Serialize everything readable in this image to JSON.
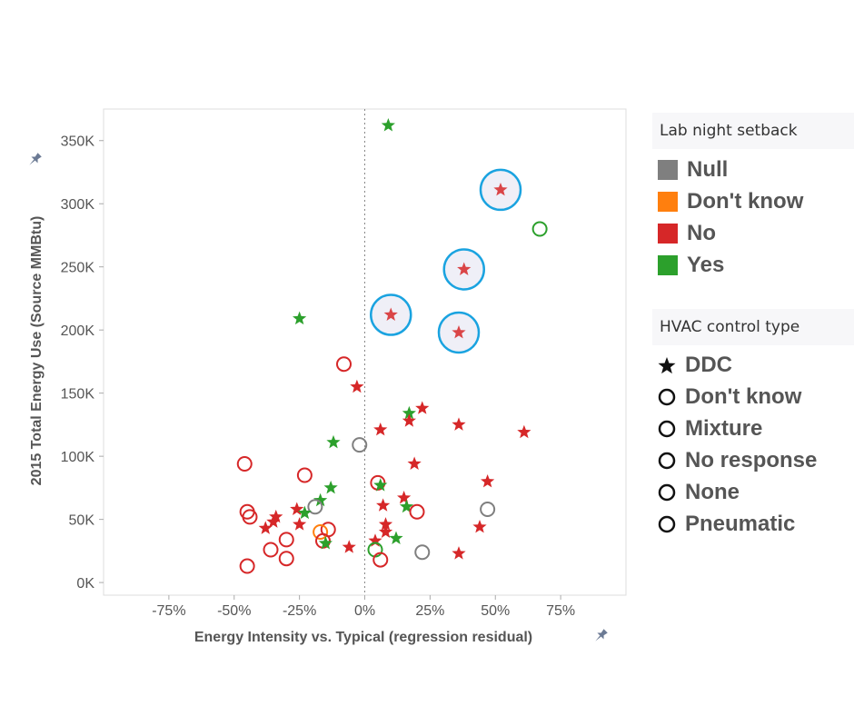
{
  "chart_data": {
    "type": "scatter",
    "xlabel": "Energy Intensity vs. Typical (regression residual)",
    "ylabel": "2015 Total Energy Use (Source MMBtu)",
    "xlim": [
      -1.0,
      1.0
    ],
    "ylim": [
      -10000,
      375000
    ],
    "x_ticks": [
      {
        "value": -0.75,
        "label": "-75%"
      },
      {
        "value": -0.5,
        "label": "-50%"
      },
      {
        "value": -0.25,
        "label": "-25%"
      },
      {
        "value": 0.0,
        "label": "0%"
      },
      {
        "value": 0.25,
        "label": "25%"
      },
      {
        "value": 0.5,
        "label": "50%"
      },
      {
        "value": 0.75,
        "label": "75%"
      }
    ],
    "y_ticks": [
      {
        "value": 0,
        "label": "0K"
      },
      {
        "value": 50000,
        "label": "50K"
      },
      {
        "value": 100000,
        "label": "100K"
      },
      {
        "value": 150000,
        "label": "150K"
      },
      {
        "value": 200000,
        "label": "200K"
      },
      {
        "value": 250000,
        "label": "250K"
      },
      {
        "value": 300000,
        "label": "300K"
      },
      {
        "value": 350000,
        "label": "350K"
      }
    ],
    "grid": false,
    "reference_line_x": 0,
    "colors": {
      "Null": "#7f7f7f",
      "Don't know": "#ff7f0e",
      "No": "#d62728",
      "Yes": "#2ca02c",
      "highlight": "#1aa3e0"
    },
    "color_legend": {
      "title": "Lab night setback",
      "items": [
        "Null",
        "Don't know",
        "No",
        "Yes"
      ],
      "position": "right"
    },
    "shape_legend": {
      "title": "HVAC control type",
      "items": [
        "DDC",
        "Don't know",
        "Mixture",
        "No response",
        "None",
        "Pneumatic"
      ],
      "position": "right"
    },
    "points": [
      {
        "x": 0.09,
        "y": 362000,
        "setback": "Yes",
        "shape": "star"
      },
      {
        "x": 0.52,
        "y": 311000,
        "setback": "No",
        "shape": "star",
        "highlight": true
      },
      {
        "x": 0.67,
        "y": 280000,
        "setback": "Yes",
        "shape": "circle"
      },
      {
        "x": 0.38,
        "y": 248000,
        "setback": "No",
        "shape": "star",
        "highlight": true
      },
      {
        "x": 0.1,
        "y": 212000,
        "setback": "No",
        "shape": "star",
        "highlight": true
      },
      {
        "x": -0.25,
        "y": 209000,
        "setback": "Yes",
        "shape": "star"
      },
      {
        "x": 0.36,
        "y": 198000,
        "setback": "No",
        "shape": "star",
        "highlight": true
      },
      {
        "x": -0.08,
        "y": 173000,
        "setback": "No",
        "shape": "circle"
      },
      {
        "x": -0.03,
        "y": 155000,
        "setback": "No",
        "shape": "star"
      },
      {
        "x": 0.22,
        "y": 138000,
        "setback": "No",
        "shape": "star"
      },
      {
        "x": 0.17,
        "y": 134000,
        "setback": "Yes",
        "shape": "star"
      },
      {
        "x": 0.17,
        "y": 128000,
        "setback": "No",
        "shape": "star"
      },
      {
        "x": 0.36,
        "y": 125000,
        "setback": "No",
        "shape": "star"
      },
      {
        "x": 0.06,
        "y": 121000,
        "setback": "No",
        "shape": "star"
      },
      {
        "x": 0.61,
        "y": 119000,
        "setback": "No",
        "shape": "star"
      },
      {
        "x": -0.12,
        "y": 111000,
        "setback": "Yes",
        "shape": "star"
      },
      {
        "x": -0.02,
        "y": 109000,
        "setback": "Null",
        "shape": "circle"
      },
      {
        "x": -0.46,
        "y": 94000,
        "setback": "No",
        "shape": "circle"
      },
      {
        "x": 0.19,
        "y": 94000,
        "setback": "No",
        "shape": "star"
      },
      {
        "x": -0.23,
        "y": 85000,
        "setback": "No",
        "shape": "circle"
      },
      {
        "x": 0.47,
        "y": 80000,
        "setback": "No",
        "shape": "star"
      },
      {
        "x": 0.05,
        "y": 79000,
        "setback": "No",
        "shape": "circle"
      },
      {
        "x": 0.06,
        "y": 77000,
        "setback": "Yes",
        "shape": "star"
      },
      {
        "x": -0.13,
        "y": 75000,
        "setback": "Yes",
        "shape": "star"
      },
      {
        "x": 0.15,
        "y": 67000,
        "setback": "No",
        "shape": "star"
      },
      {
        "x": -0.17,
        "y": 65000,
        "setback": "Yes",
        "shape": "star"
      },
      {
        "x": 0.07,
        "y": 61000,
        "setback": "No",
        "shape": "star"
      },
      {
        "x": -0.19,
        "y": 60000,
        "setback": "Null",
        "shape": "circle"
      },
      {
        "x": 0.16,
        "y": 60000,
        "setback": "Yes",
        "shape": "star"
      },
      {
        "x": -0.26,
        "y": 58000,
        "setback": "No",
        "shape": "star"
      },
      {
        "x": 0.47,
        "y": 58000,
        "setback": "Null",
        "shape": "circle"
      },
      {
        "x": -0.45,
        "y": 56000,
        "setback": "No",
        "shape": "circle"
      },
      {
        "x": 0.2,
        "y": 56000,
        "setback": "No",
        "shape": "circle"
      },
      {
        "x": -0.23,
        "y": 55000,
        "setback": "Yes",
        "shape": "star"
      },
      {
        "x": -0.34,
        "y": 52000,
        "setback": "No",
        "shape": "star"
      },
      {
        "x": -0.44,
        "y": 52000,
        "setback": "No",
        "shape": "circle"
      },
      {
        "x": -0.35,
        "y": 48000,
        "setback": "No",
        "shape": "star"
      },
      {
        "x": -0.25,
        "y": 46000,
        "setback": "No",
        "shape": "star"
      },
      {
        "x": 0.08,
        "y": 46000,
        "setback": "No",
        "shape": "star"
      },
      {
        "x": 0.44,
        "y": 44000,
        "setback": "No",
        "shape": "star"
      },
      {
        "x": -0.38,
        "y": 43000,
        "setback": "No",
        "shape": "star"
      },
      {
        "x": -0.14,
        "y": 42000,
        "setback": "No",
        "shape": "circle"
      },
      {
        "x": 0.08,
        "y": 40000,
        "setback": "No",
        "shape": "star"
      },
      {
        "x": -0.17,
        "y": 40000,
        "setback": "Don't know",
        "shape": "circle"
      },
      {
        "x": 0.12,
        "y": 35000,
        "setback": "Yes",
        "shape": "star"
      },
      {
        "x": -0.3,
        "y": 34000,
        "setback": "No",
        "shape": "circle"
      },
      {
        "x": 0.04,
        "y": 33000,
        "setback": "No",
        "shape": "star"
      },
      {
        "x": -0.16,
        "y": 33000,
        "setback": "No",
        "shape": "circle"
      },
      {
        "x": -0.15,
        "y": 31000,
        "setback": "Yes",
        "shape": "star"
      },
      {
        "x": -0.06,
        "y": 28000,
        "setback": "No",
        "shape": "star"
      },
      {
        "x": 0.04,
        "y": 26000,
        "setback": "Yes",
        "shape": "circle"
      },
      {
        "x": -0.36,
        "y": 26000,
        "setback": "No",
        "shape": "circle"
      },
      {
        "x": 0.22,
        "y": 24000,
        "setback": "Null",
        "shape": "circle"
      },
      {
        "x": 0.36,
        "y": 23000,
        "setback": "No",
        "shape": "star"
      },
      {
        "x": -0.3,
        "y": 19000,
        "setback": "No",
        "shape": "circle"
      },
      {
        "x": 0.06,
        "y": 18000,
        "setback": "No",
        "shape": "circle"
      },
      {
        "x": -0.45,
        "y": 13000,
        "setback": "No",
        "shape": "circle"
      }
    ]
  },
  "legend": {
    "color_title": "Lab night setback",
    "color_items": [
      {
        "label": "Null",
        "color": "#7f7f7f"
      },
      {
        "label": "Don't know",
        "color": "#ff7f0e"
      },
      {
        "label": "No",
        "color": "#d62728"
      },
      {
        "label": "Yes",
        "color": "#2ca02c"
      }
    ],
    "shape_title": "HVAC control type",
    "shape_items": [
      {
        "label": "DDC",
        "icon": "star-icon"
      },
      {
        "label": "Don't know",
        "icon": "circle-icon"
      },
      {
        "label": "Mixture",
        "icon": "circle-icon"
      },
      {
        "label": "No response",
        "icon": "circle-icon"
      },
      {
        "label": "None",
        "icon": "circle-icon"
      },
      {
        "label": "Pneumatic",
        "icon": "circle-icon"
      }
    ]
  }
}
